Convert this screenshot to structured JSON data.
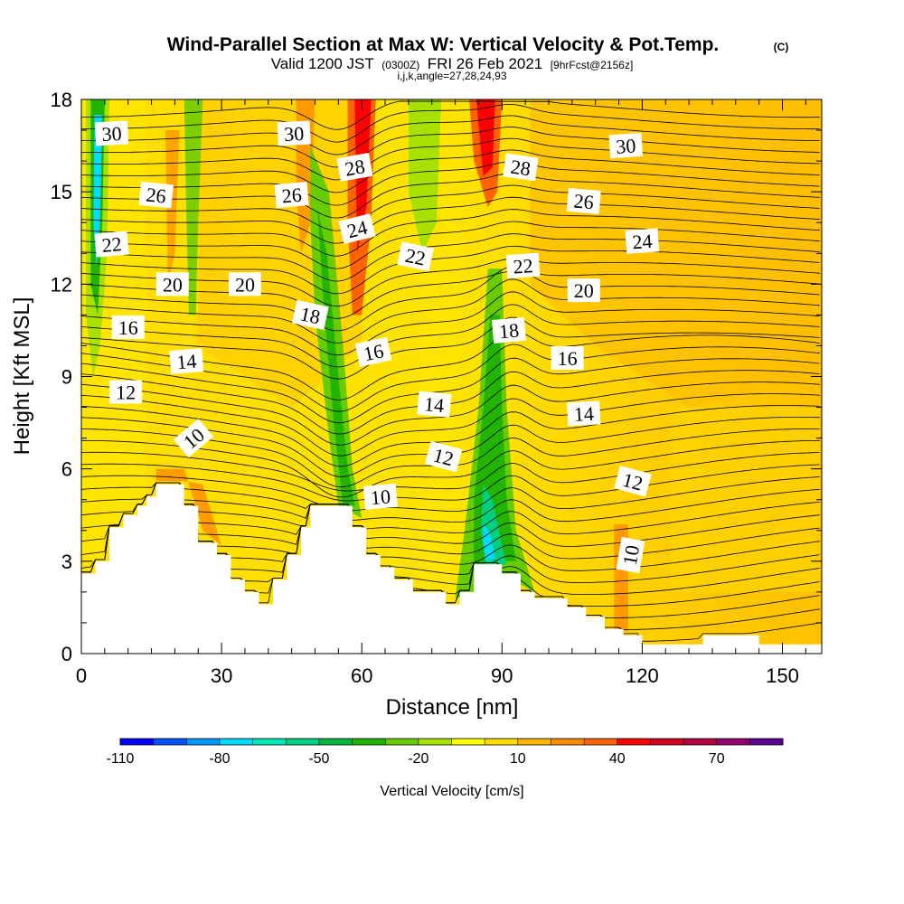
{
  "header": {
    "title": "Wind-Parallel Section at Max W: Vertical Velocity & Pot.Temp.",
    "copyright": "(C)",
    "valid_prefix": "Valid 1200 JST",
    "valid_utc": "(0300Z)",
    "valid_date": "FRI 26 Feb 2021",
    "forecast_info": "[9hrFcst@2156z]",
    "indices": "i,j,k,angle=27,28,24,93"
  },
  "colorbar": {
    "title": "Vertical Velocity [cm/s]",
    "labels": [
      "-110",
      "-80",
      "-50",
      "-20",
      "10",
      "40",
      "70"
    ],
    "colors": [
      "#0000ff",
      "#0050ff",
      "#0095ff",
      "#00dcff",
      "#00e8b8",
      "#00d080",
      "#00b840",
      "#22b400",
      "#68cc00",
      "#a8e000",
      "#ffff00",
      "#ffdc00",
      "#ffb400",
      "#ff8c00",
      "#ff6400",
      "#ff0000",
      "#d00020",
      "#b00040",
      "#900070",
      "#5a0090"
    ]
  },
  "chart_data": {
    "type": "heatmap",
    "xlabel": "Distance [nm]",
    "ylabel": "Height [Kft MSL]",
    "xlim": [
      0,
      158
    ],
    "ylim": [
      0,
      18
    ],
    "xticks": [
      0,
      30,
      60,
      90,
      120,
      150
    ],
    "yticks": [
      0,
      3,
      6,
      9,
      12,
      15,
      18
    ],
    "field": "Vertical Velocity [cm/s]",
    "contour_field": "Potential Temperature",
    "terrain_kft": [
      [
        0,
        2.6
      ],
      [
        3,
        2.6
      ],
      [
        3,
        3.0
      ],
      [
        6,
        3.0
      ],
      [
        6,
        4.1
      ],
      [
        9,
        4.1
      ],
      [
        9,
        4.5
      ],
      [
        12,
        4.5
      ],
      [
        12,
        4.8
      ],
      [
        14,
        4.8
      ],
      [
        14,
        5.1
      ],
      [
        16,
        5.1
      ],
      [
        16,
        5.5
      ],
      [
        22,
        5.5
      ],
      [
        22,
        4.8
      ],
      [
        25,
        4.8
      ],
      [
        25,
        3.6
      ],
      [
        29,
        3.6
      ],
      [
        29,
        3.2
      ],
      [
        32,
        3.2
      ],
      [
        32,
        2.4
      ],
      [
        35,
        2.4
      ],
      [
        35,
        2.0
      ],
      [
        38,
        2.0
      ],
      [
        38,
        1.6
      ],
      [
        41,
        1.6
      ],
      [
        41,
        2.4
      ],
      [
        44,
        2.4
      ],
      [
        44,
        3.2
      ],
      [
        47,
        3.2
      ],
      [
        47,
        4.1
      ],
      [
        49,
        4.1
      ],
      [
        49,
        4.8
      ],
      [
        58,
        4.8
      ],
      [
        58,
        4.1
      ],
      [
        61,
        4.1
      ],
      [
        61,
        3.2
      ],
      [
        64,
        3.2
      ],
      [
        64,
        2.8
      ],
      [
        67,
        2.8
      ],
      [
        67,
        2.4
      ],
      [
        71,
        2.4
      ],
      [
        71,
        2.0
      ],
      [
        78,
        2.0
      ],
      [
        78,
        1.6
      ],
      [
        81,
        1.6
      ],
      [
        81,
        2.0
      ],
      [
        84,
        2.0
      ],
      [
        84,
        2.9
      ],
      [
        90,
        2.9
      ],
      [
        90,
        2.6
      ],
      [
        94,
        2.6
      ],
      [
        94,
        2.0
      ],
      [
        97,
        2.0
      ],
      [
        97,
        1.8
      ],
      [
        104,
        1.8
      ],
      [
        104,
        1.5
      ],
      [
        108,
        1.5
      ],
      [
        108,
        1.2
      ],
      [
        112,
        1.2
      ],
      [
        112,
        0.8
      ],
      [
        116,
        0.8
      ],
      [
        116,
        0.6
      ],
      [
        120,
        0.6
      ],
      [
        120,
        0.3
      ],
      [
        133,
        0.3
      ],
      [
        133,
        0.6
      ],
      [
        145,
        0.6
      ],
      [
        145,
        0.3
      ],
      [
        158,
        0.3
      ]
    ],
    "contour_labels": [
      {
        "text": "30",
        "x": 6.5,
        "y": 16.9,
        "angle": -3
      },
      {
        "text": "30",
        "x": 45.5,
        "y": 16.9,
        "angle": -3
      },
      {
        "text": "30",
        "x": 116.5,
        "y": 16.5,
        "angle": -4
      },
      {
        "text": "26",
        "x": 16,
        "y": 14.9,
        "angle": 6
      },
      {
        "text": "26",
        "x": 45,
        "y": 14.9,
        "angle": -5
      },
      {
        "text": "26",
        "x": 107.5,
        "y": 14.7,
        "angle": 5
      },
      {
        "text": "28",
        "x": 58.5,
        "y": 15.8,
        "angle": -10
      },
      {
        "text": "28",
        "x": 94,
        "y": 15.8,
        "angle": 8
      },
      {
        "text": "24",
        "x": 59,
        "y": 13.8,
        "angle": -14
      },
      {
        "text": "24",
        "x": 120,
        "y": 13.4,
        "angle": -4
      },
      {
        "text": "22",
        "x": 6.5,
        "y": 13.3,
        "angle": -5
      },
      {
        "text": "22",
        "x": 71.5,
        "y": 12.9,
        "angle": 12
      },
      {
        "text": "22",
        "x": 94.5,
        "y": 12.6,
        "angle": -4
      },
      {
        "text": "20",
        "x": 19.5,
        "y": 12.0,
        "angle": 0
      },
      {
        "text": "20",
        "x": 35,
        "y": 12.0,
        "angle": 0
      },
      {
        "text": "20",
        "x": 107.5,
        "y": 11.8,
        "angle": 0
      },
      {
        "text": "18",
        "x": 49,
        "y": 11.0,
        "angle": 12
      },
      {
        "text": "18",
        "x": 91.5,
        "y": 10.5,
        "angle": -5
      },
      {
        "text": "16",
        "x": 10,
        "y": 10.6,
        "angle": 0
      },
      {
        "text": "16",
        "x": 62.5,
        "y": 9.8,
        "angle": -12
      },
      {
        "text": "16",
        "x": 104,
        "y": 9.6,
        "angle": 0
      },
      {
        "text": "14",
        "x": 22.5,
        "y": 9.5,
        "angle": -5
      },
      {
        "text": "14",
        "x": 75.5,
        "y": 8.1,
        "angle": 5
      },
      {
        "text": "14",
        "x": 107.5,
        "y": 7.8,
        "angle": -3
      },
      {
        "text": "12",
        "x": 9.5,
        "y": 8.5,
        "angle": 0
      },
      {
        "text": "12",
        "x": 77.5,
        "y": 6.4,
        "angle": 15
      },
      {
        "text": "12",
        "x": 118,
        "y": 5.6,
        "angle": 15
      },
      {
        "text": "10",
        "x": 24,
        "y": 7.0,
        "angle": -40
      },
      {
        "text": "10",
        "x": 64,
        "y": 5.1,
        "angle": -5
      },
      {
        "text": "10",
        "x": 117.5,
        "y": 3.2,
        "angle": -80
      }
    ]
  }
}
